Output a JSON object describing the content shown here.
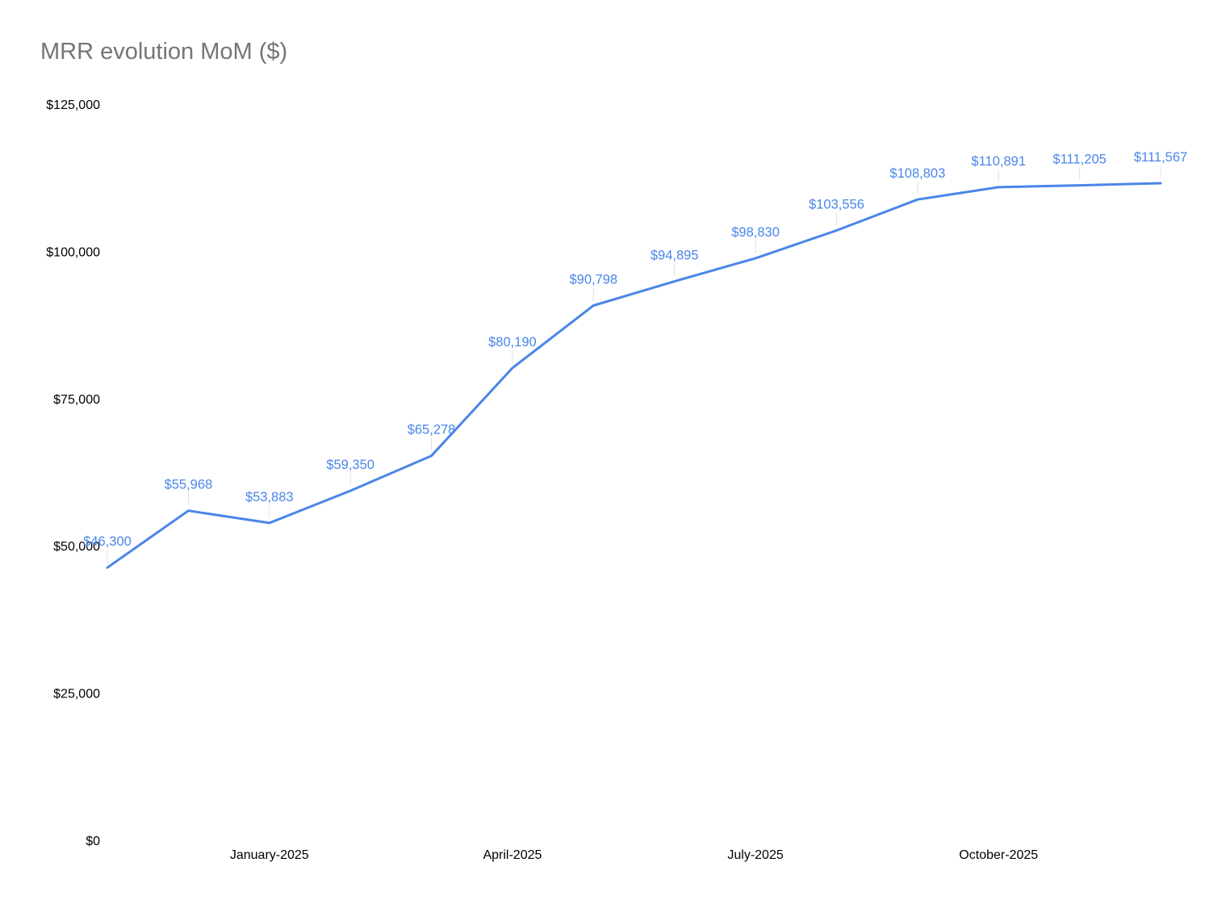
{
  "chart_data": {
    "type": "line",
    "title": "MRR evolution MoM ($)",
    "xlabel": "",
    "ylabel": "",
    "ylim": [
      0,
      125000
    ],
    "grid": false,
    "legend": "none",
    "line_color": "#4a86e8",
    "yticks": [
      {
        "value": 0,
        "label": "$0"
      },
      {
        "value": 25000,
        "label": "$25,000"
      },
      {
        "value": 50000,
        "label": "$50,000"
      },
      {
        "value": 75000,
        "label": "$75,000"
      },
      {
        "value": 100000,
        "label": "$100,000"
      },
      {
        "value": 125000,
        "label": "$125,000"
      }
    ],
    "xticks": [
      {
        "index": 2,
        "label": "January-2025"
      },
      {
        "index": 5,
        "label": "April-2025"
      },
      {
        "index": 8,
        "label": "July-2025"
      },
      {
        "index": 11,
        "label": "October-2025"
      }
    ],
    "series": [
      {
        "values": [
          46300,
          55968,
          53883,
          59350,
          65278,
          80190,
          90798,
          94895,
          98830,
          103556,
          108803,
          110891,
          111205,
          111567
        ],
        "labels": [
          "$46,300",
          "$55,968",
          "$53,883",
          "$59,350",
          "$65,278",
          "$80,190",
          "$90,798",
          "$94,895",
          "$98,830",
          "$103,556",
          "$108,803",
          "$110,891",
          "$111,205",
          "$111,567"
        ]
      }
    ]
  }
}
